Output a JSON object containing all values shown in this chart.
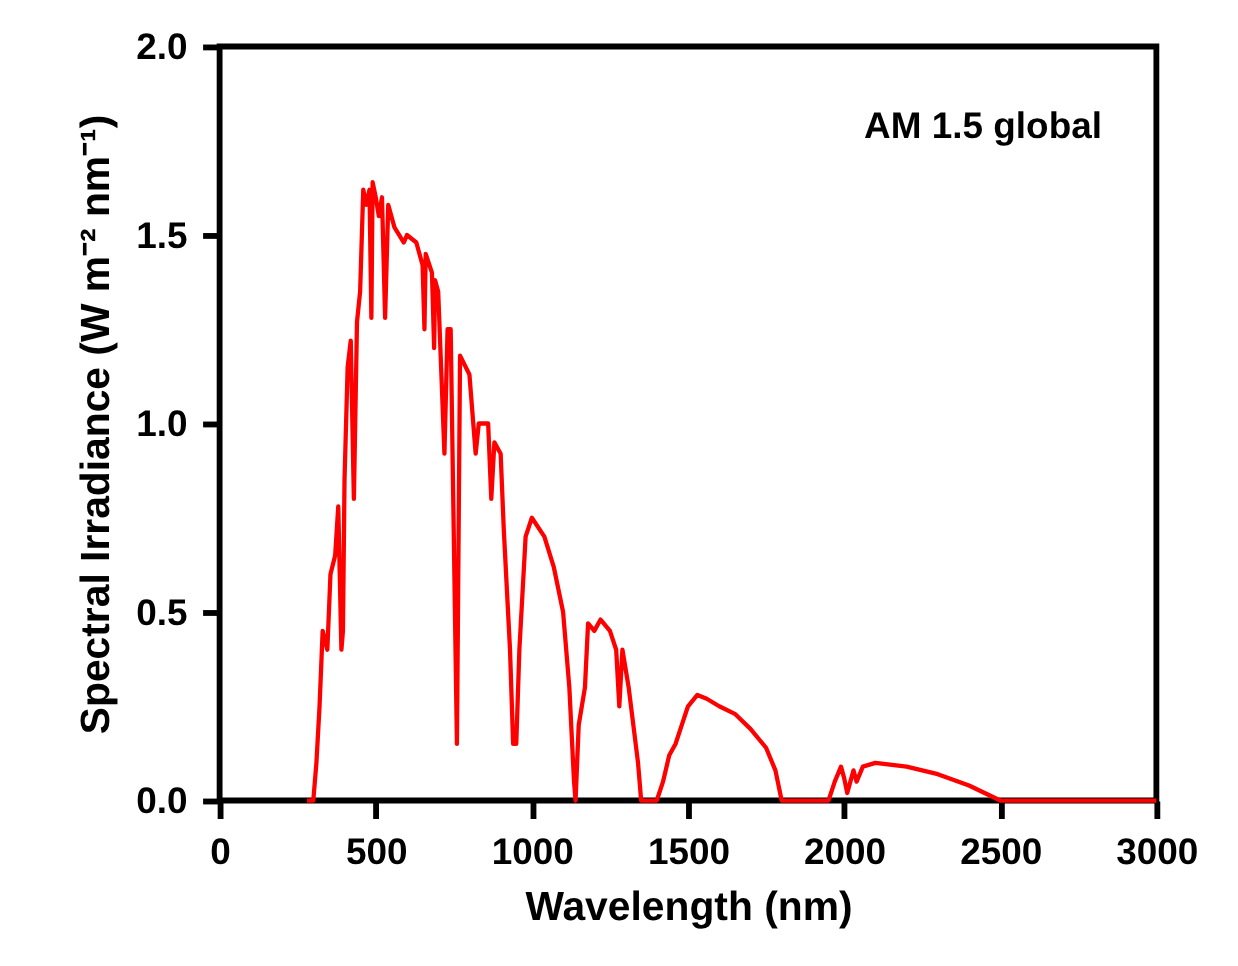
{
  "chart_data": {
    "type": "line",
    "xlabel": "Wavelength (nm)",
    "ylabel": "Spectral Irradiance (W m⁻² nm⁻¹)",
    "annotations": [
      "AM 1.5 global"
    ],
    "xlim": [
      0,
      3000
    ],
    "xticks": [
      0,
      500,
      1000,
      1500,
      2000,
      2500,
      3000
    ],
    "ylim": [
      0,
      2
    ],
    "yticks": [
      {
        "value": 0,
        "label": "0.0"
      },
      {
        "value": 0.5,
        "label": "0.5"
      },
      {
        "value": 1,
        "label": "1.0"
      },
      {
        "value": 1.5,
        "label": "1.5"
      },
      {
        "value": 2,
        "label": "2.0"
      }
    ],
    "grid": false,
    "marker": "none",
    "line_style": "solid",
    "series": [
      {
        "color": "#ff0000",
        "x": [
          280,
          300,
          310,
          320,
          330,
          345,
          355,
          370,
          380,
          390,
          395,
          400,
          410,
          420,
          430,
          440,
          450,
          460,
          470,
          480,
          486,
          490,
          500,
          510,
          520,
          530,
          540,
          560,
          590,
          600,
          630,
          650,
          656,
          660,
          680,
          687,
          690,
          700,
          720,
          730,
          740,
          760,
          770,
          800,
          820,
          830,
          860,
          870,
          880,
          900,
          910,
          930,
          940,
          950,
          960,
          980,
          1000,
          1040,
          1070,
          1100,
          1120,
          1135,
          1140,
          1150,
          1170,
          1180,
          1200,
          1220,
          1250,
          1270,
          1280,
          1290,
          1310,
          1340,
          1350,
          1400,
          1420,
          1440,
          1460,
          1480,
          1500,
          1530,
          1560,
          1600,
          1650,
          1700,
          1750,
          1780,
          1800,
          1950,
          1970,
          1990,
          2000,
          2010,
          2030,
          2040,
          2060,
          2100,
          2200,
          2300,
          2400,
          2450,
          2500,
          3000
        ],
        "values": [
          0,
          0,
          0.1,
          0.25,
          0.45,
          0.4,
          0.6,
          0.65,
          0.78,
          0.4,
          0.45,
          0.85,
          1.15,
          1.22,
          0.8,
          1.27,
          1.35,
          1.62,
          1.58,
          1.62,
          1.28,
          1.64,
          1.6,
          1.55,
          1.6,
          1.28,
          1.58,
          1.52,
          1.48,
          1.5,
          1.48,
          1.42,
          1.25,
          1.45,
          1.4,
          1.2,
          1.38,
          1.35,
          0.92,
          1.25,
          1.25,
          0.15,
          1.18,
          1.13,
          0.92,
          1.0,
          1.0,
          0.8,
          0.95,
          0.92,
          0.72,
          0.4,
          0.15,
          0.15,
          0.4,
          0.7,
          0.75,
          0.7,
          0.62,
          0.5,
          0.3,
          0.05,
          0,
          0.2,
          0.3,
          0.47,
          0.45,
          0.48,
          0.45,
          0.4,
          0.25,
          0.4,
          0.3,
          0.1,
          0,
          0,
          0.05,
          0.12,
          0.15,
          0.2,
          0.25,
          0.28,
          0.27,
          0.25,
          0.23,
          0.19,
          0.14,
          0.08,
          0,
          0,
          0.05,
          0.09,
          0.06,
          0.02,
          0.08,
          0.05,
          0.09,
          0.1,
          0.09,
          0.07,
          0.04,
          0.02,
          0,
          0
        ]
      }
    ]
  }
}
